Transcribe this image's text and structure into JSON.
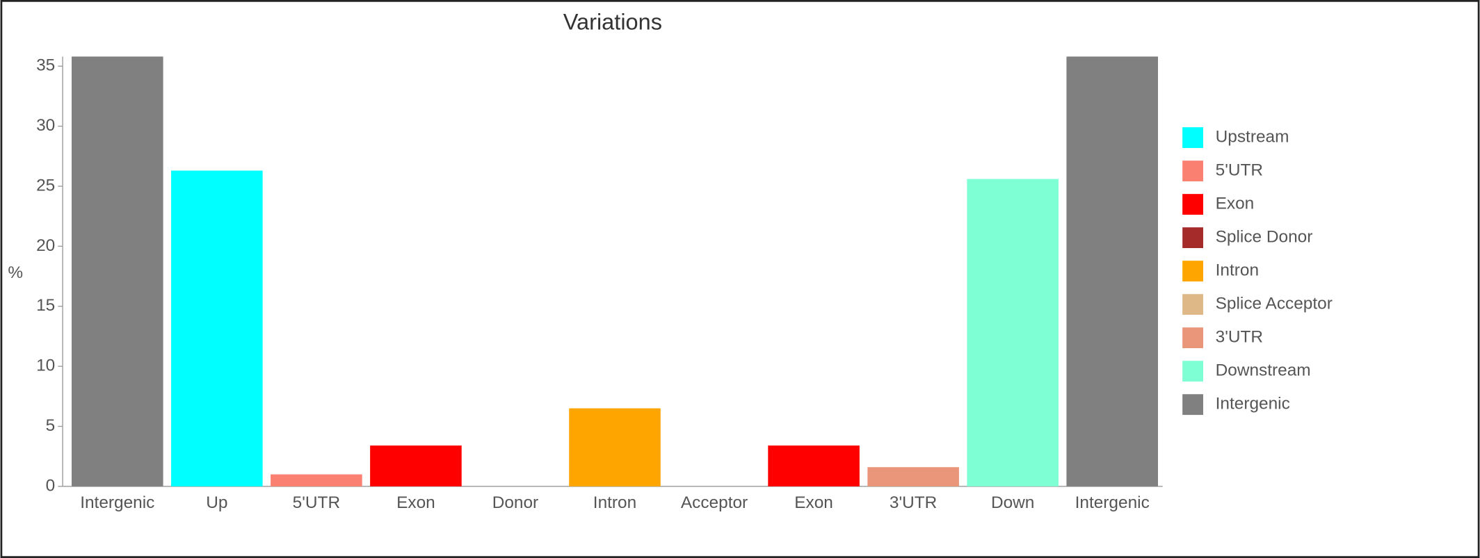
{
  "chart_data": {
    "type": "bar",
    "title": "Variations",
    "y_label": "%",
    "categories": [
      "Intergenic",
      "Up",
      "5'UTR",
      "Exon",
      "Donor",
      "Intron",
      "Acceptor",
      "Exon",
      "3'UTR",
      "Down",
      "Intergenic"
    ],
    "values": [
      35.8,
      26.3,
      1.0,
      3.4,
      0,
      6.5,
      0,
      3.4,
      1.6,
      25.6,
      35.8
    ],
    "colors": [
      "#808080",
      "#00ffff",
      "#fa8072",
      "#ff0000",
      "#a52a2a",
      "#ffa500",
      "#deb887",
      "#ff0000",
      "#e9967a",
      "#7fffd4",
      "#808080"
    ],
    "ylim": [
      0,
      35.8
    ],
    "yticks": [
      0,
      5,
      10,
      15,
      20,
      25,
      30,
      35
    ],
    "legend": [
      {
        "name": "Upstream",
        "color": "#00ffff"
      },
      {
        "name": "5'UTR",
        "color": "#fa8072"
      },
      {
        "name": "Exon",
        "color": "#ff0000"
      },
      {
        "name": "Splice Donor",
        "color": "#a52a2a"
      },
      {
        "name": "Intron",
        "color": "#ffa500"
      },
      {
        "name": "Splice Acceptor",
        "color": "#deb887"
      },
      {
        "name": "3'UTR",
        "color": "#e9967a"
      },
      {
        "name": "Downstream",
        "color": "#7fffd4"
      },
      {
        "name": "Intergenic",
        "color": "#808080"
      }
    ]
  }
}
